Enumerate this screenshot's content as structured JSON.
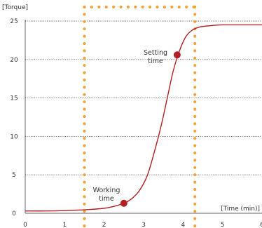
{
  "chart_data": {
    "type": "line",
    "ylabel": "[Torque]",
    "xlabel": "[Time (min)]",
    "xlim": [
      0,
      6
    ],
    "ylim": [
      0,
      25
    ],
    "x_ticks": [
      0,
      1,
      2,
      3,
      4,
      5,
      6
    ],
    "x_tick_labels": [
      "0",
      "1",
      "2",
      "3",
      "4",
      "5",
      "6"
    ],
    "y_ticks": [
      0,
      5,
      10,
      15,
      20,
      25
    ],
    "y_tick_labels": [
      "0",
      "5",
      "10",
      "15",
      "20",
      "25"
    ],
    "grid": "horizontal dotted",
    "series": [
      {
        "color": "#b11f24",
        "points": [
          [
            0,
            0.3
          ],
          [
            0.5,
            0.3
          ],
          [
            1.0,
            0.35
          ],
          [
            1.5,
            0.45
          ],
          [
            2.0,
            0.65
          ],
          [
            2.25,
            0.9
          ],
          [
            2.5,
            1.3
          ],
          [
            2.7,
            1.9
          ],
          [
            2.9,
            3.0
          ],
          [
            3.1,
            5.0
          ],
          [
            3.3,
            8.5
          ],
          [
            3.45,
            11.5
          ],
          [
            3.6,
            15.0
          ],
          [
            3.75,
            18.5
          ],
          [
            3.9,
            21.0
          ],
          [
            4.05,
            22.8
          ],
          [
            4.2,
            23.7
          ],
          [
            4.4,
            24.2
          ],
          [
            4.7,
            24.4
          ],
          [
            5.0,
            24.5
          ],
          [
            5.5,
            24.5
          ],
          [
            6.0,
            24.5
          ]
        ]
      }
    ],
    "markers": [
      {
        "name": "working-time",
        "x": 2.5,
        "y": 1.3,
        "label": "Working\ntime"
      },
      {
        "name": "setting-time",
        "x": 3.85,
        "y": 20.6,
        "label": "Setting\ntime"
      }
    ],
    "vertical_markers": [
      1.5,
      4.3
    ],
    "colors": {
      "curve": "#b11f24",
      "marker": "#b11f24",
      "window": "#f3a23b",
      "axis": "#666666",
      "grid": "#555555"
    }
  }
}
